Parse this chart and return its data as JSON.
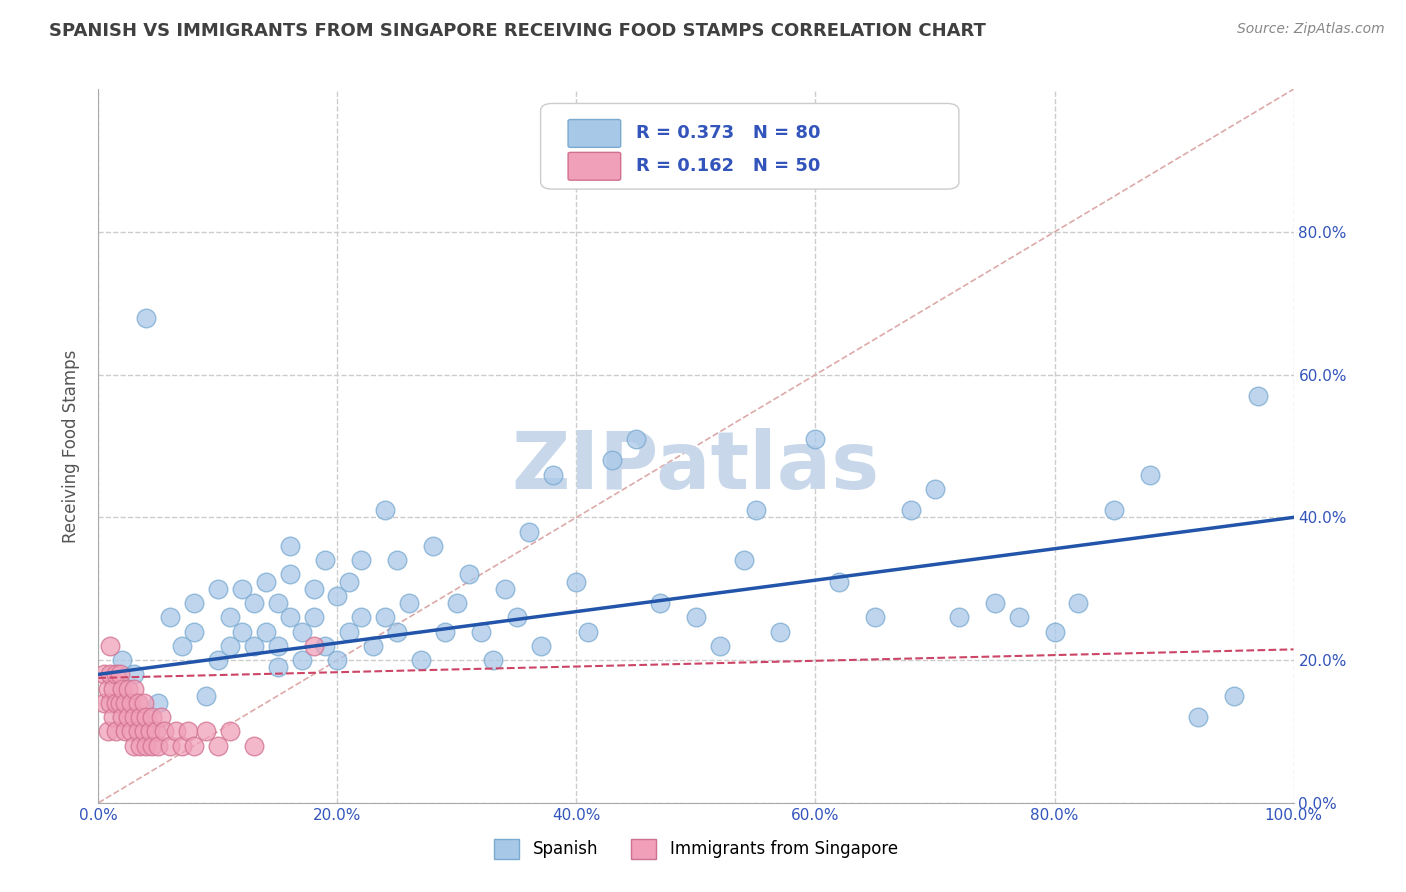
{
  "title": "SPANISH VS IMMIGRANTS FROM SINGAPORE RECEIVING FOOD STAMPS CORRELATION CHART",
  "source": "Source: ZipAtlas.com",
  "ylabel": "Receiving Food Stamps",
  "xlim": [
    0.0,
    1.0
  ],
  "ylim": [
    0.0,
    1.0
  ],
  "xticks": [
    0.0,
    0.2,
    0.4,
    0.6,
    0.8,
    1.0
  ],
  "yticks": [
    0.0,
    0.2,
    0.4,
    0.6,
    0.8
  ],
  "ytick_labels_right": [
    "0.0%",
    "20.0%",
    "40.0%",
    "60.0%",
    "80.0%"
  ],
  "xtick_labels": [
    "0.0%",
    "20.0%",
    "40.0%",
    "60.0%",
    "80.0%",
    "100.0%"
  ],
  "blue_R": 0.373,
  "blue_N": 80,
  "pink_R": 0.162,
  "pink_N": 50,
  "blue_color": "#A8C8E8",
  "blue_edge_color": "#7AAAD0",
  "pink_color": "#F0A0B8",
  "pink_edge_color": "#D07090",
  "blue_label": "Spanish",
  "pink_label": "Immigrants from Singapore",
  "legend_text_color": "#3355BB",
  "watermark": "ZIPatlas",
  "watermark_color": "#C8D8EA",
  "background_color": "#FFFFFF",
  "grid_color": "#CCCCCC",
  "title_color": "#404040",
  "tick_label_color": "#3355BB",
  "blue_line_color": "#2255AA",
  "pink_line_color": "#CC4466",
  "diag_line_color": "#DDAAAA",
  "blue_line_y0": 0.18,
  "blue_line_y1": 0.4,
  "pink_line_y0": 0.175,
  "pink_line_y1": 0.215,
  "blue_scatter_x": [
    0.02,
    0.03,
    0.04,
    0.05,
    0.06,
    0.07,
    0.08,
    0.08,
    0.09,
    0.1,
    0.1,
    0.11,
    0.11,
    0.12,
    0.12,
    0.13,
    0.13,
    0.14,
    0.14,
    0.15,
    0.15,
    0.15,
    0.16,
    0.16,
    0.16,
    0.17,
    0.17,
    0.18,
    0.18,
    0.19,
    0.19,
    0.2,
    0.2,
    0.21,
    0.21,
    0.22,
    0.22,
    0.23,
    0.24,
    0.24,
    0.25,
    0.25,
    0.26,
    0.27,
    0.28,
    0.29,
    0.3,
    0.31,
    0.32,
    0.33,
    0.34,
    0.35,
    0.36,
    0.37,
    0.38,
    0.4,
    0.41,
    0.43,
    0.45,
    0.47,
    0.5,
    0.52,
    0.54,
    0.55,
    0.57,
    0.6,
    0.62,
    0.65,
    0.68,
    0.7,
    0.72,
    0.75,
    0.77,
    0.8,
    0.82,
    0.85,
    0.88,
    0.92,
    0.95,
    0.97
  ],
  "blue_scatter_y": [
    0.2,
    0.18,
    0.68,
    0.14,
    0.26,
    0.22,
    0.24,
    0.28,
    0.15,
    0.2,
    0.3,
    0.26,
    0.22,
    0.24,
    0.3,
    0.22,
    0.28,
    0.24,
    0.31,
    0.28,
    0.19,
    0.22,
    0.26,
    0.32,
    0.36,
    0.24,
    0.2,
    0.3,
    0.26,
    0.22,
    0.34,
    0.29,
    0.2,
    0.31,
    0.24,
    0.34,
    0.26,
    0.22,
    0.41,
    0.26,
    0.24,
    0.34,
    0.28,
    0.2,
    0.36,
    0.24,
    0.28,
    0.32,
    0.24,
    0.2,
    0.3,
    0.26,
    0.38,
    0.22,
    0.46,
    0.31,
    0.24,
    0.48,
    0.51,
    0.28,
    0.26,
    0.22,
    0.34,
    0.41,
    0.24,
    0.51,
    0.31,
    0.26,
    0.41,
    0.44,
    0.26,
    0.28,
    0.26,
    0.24,
    0.28,
    0.41,
    0.46,
    0.12,
    0.15,
    0.57
  ],
  "pink_scatter_x": [
    0.005,
    0.005,
    0.008,
    0.008,
    0.01,
    0.01,
    0.01,
    0.012,
    0.012,
    0.015,
    0.015,
    0.015,
    0.018,
    0.018,
    0.02,
    0.02,
    0.022,
    0.022,
    0.025,
    0.025,
    0.027,
    0.027,
    0.03,
    0.03,
    0.03,
    0.033,
    0.033,
    0.035,
    0.035,
    0.038,
    0.038,
    0.04,
    0.04,
    0.043,
    0.045,
    0.045,
    0.048,
    0.05,
    0.052,
    0.055,
    0.06,
    0.065,
    0.07,
    0.075,
    0.08,
    0.09,
    0.1,
    0.11,
    0.13,
    0.18
  ],
  "pink_scatter_y": [
    0.18,
    0.14,
    0.16,
    0.1,
    0.14,
    0.18,
    0.22,
    0.12,
    0.16,
    0.14,
    0.18,
    0.1,
    0.14,
    0.18,
    0.12,
    0.16,
    0.1,
    0.14,
    0.12,
    0.16,
    0.1,
    0.14,
    0.08,
    0.12,
    0.16,
    0.1,
    0.14,
    0.08,
    0.12,
    0.1,
    0.14,
    0.08,
    0.12,
    0.1,
    0.08,
    0.12,
    0.1,
    0.08,
    0.12,
    0.1,
    0.08,
    0.1,
    0.08,
    0.1,
    0.08,
    0.1,
    0.08,
    0.1,
    0.08,
    0.22
  ]
}
